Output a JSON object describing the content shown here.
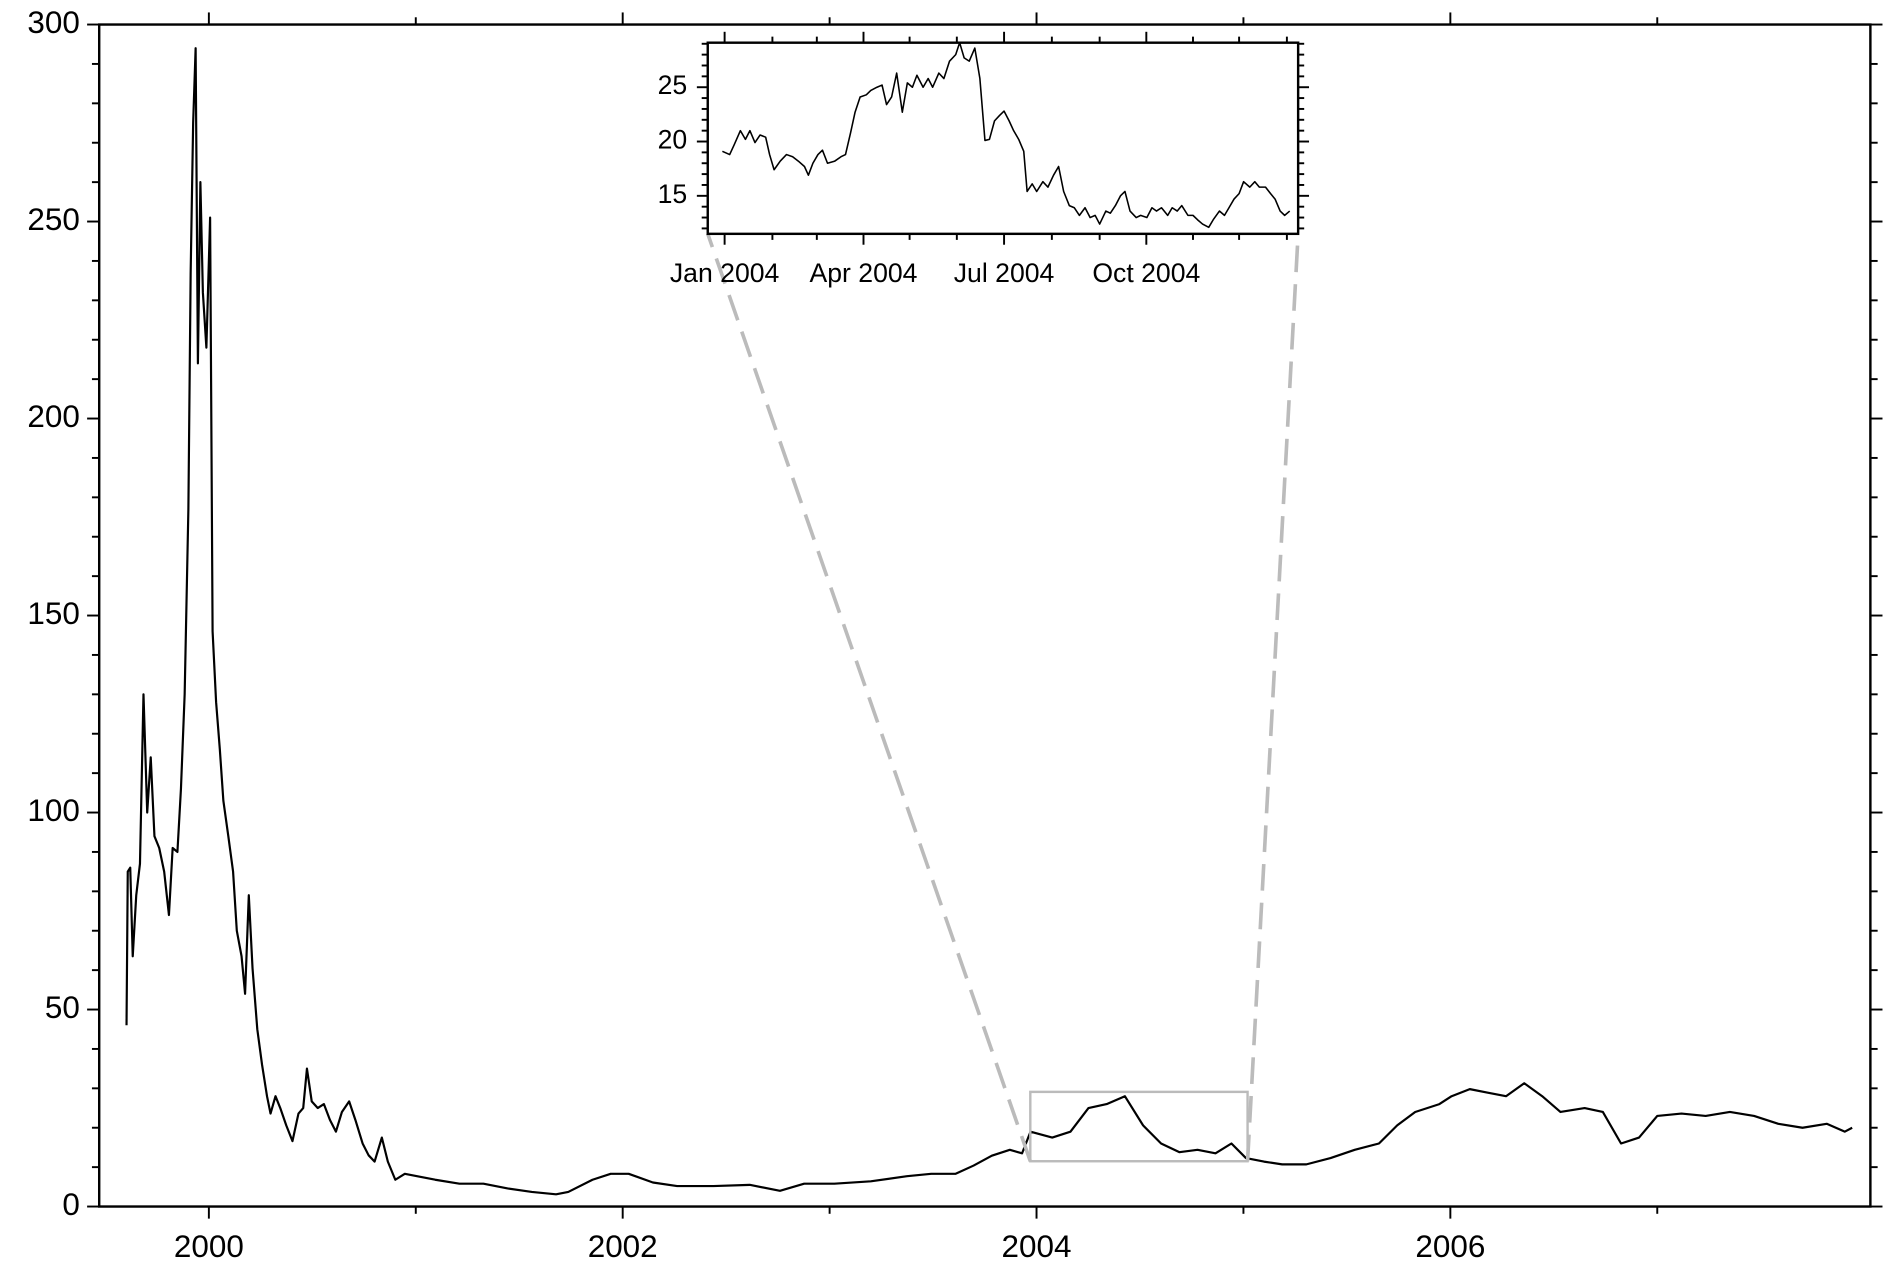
{
  "chart_data": [
    {
      "type": "line",
      "x": [
        1999.602,
        1999.608,
        1999.62,
        1999.632,
        1999.649,
        1999.667,
        1999.684,
        1999.702,
        1999.719,
        1999.737,
        1999.76,
        1999.784,
        1999.807,
        1999.825,
        1999.848,
        1999.865,
        1999.883,
        1999.901,
        1999.912,
        1999.924,
        1999.936,
        1999.947,
        1999.959,
        1999.971,
        1999.988,
        2000.006,
        2000.018,
        2000.035,
        2000.053,
        2000.07,
        2000.094,
        2000.117,
        2000.135,
        2000.158,
        2000.175,
        2000.193,
        2000.211,
        2000.234,
        2000.257,
        2000.281,
        2000.298,
        2000.322,
        2000.345,
        2000.374,
        2000.404,
        2000.433,
        2000.456,
        2000.474,
        2000.497,
        2000.526,
        2000.556,
        2000.585,
        2000.614,
        2000.643,
        2000.678,
        2000.708,
        2000.743,
        2000.772,
        2000.801,
        2000.836,
        2000.865,
        2000.901,
        2000.947,
        2001.006,
        2001.094,
        2001.211,
        2001.327,
        2001.444,
        2001.561,
        2001.678,
        2001.737,
        2001.854,
        2001.942,
        2002.029,
        2002.146,
        2002.263,
        2002.439,
        2002.614,
        2002.76,
        2002.877,
        2003.023,
        2003.199,
        2003.374,
        2003.491,
        2003.608,
        2003.696,
        2003.784,
        2003.871,
        2003.93,
        2003.971,
        2004.076,
        2004.164,
        2004.251,
        2004.339,
        2004.427,
        2004.515,
        2004.602,
        2004.69,
        2004.778,
        2004.865,
        2004.942,
        2005.012,
        2005.099,
        2005.187,
        2005.304,
        2005.421,
        2005.538,
        2005.655,
        2005.743,
        2005.83,
        2005.947,
        2006.006,
        2006.094,
        2006.181,
        2006.269,
        2006.357,
        2006.444,
        2006.532,
        2006.649,
        2006.737,
        2006.825,
        2006.912,
        2007.0,
        2007.117,
        2007.234,
        2007.351,
        2007.468,
        2007.585,
        2007.702,
        2007.819,
        2007.906,
        2007.942
      ],
      "series": [
        {
          "color": "#000000",
          "values": [
            46,
            85,
            86,
            63.5,
            79,
            87,
            130,
            100,
            114,
            94,
            91,
            85,
            74,
            91,
            90,
            106,
            130,
            177,
            237,
            275,
            294,
            214,
            260,
            232,
            218,
            251,
            146,
            128,
            116,
            103,
            94,
            85,
            70,
            63.5,
            54,
            79,
            60.5,
            45,
            36,
            28,
            23.6,
            28,
            25,
            20.6,
            16.6,
            23.6,
            25,
            35,
            26.7,
            25,
            26,
            22,
            19,
            24,
            26.7,
            22,
            16,
            13,
            11.4,
            17.5,
            11.4,
            6.8,
            8.3,
            7.7,
            6.8,
            5.8,
            5.8,
            4.6,
            3.7,
            3.1,
            3.7,
            6.8,
            8.3,
            8.3,
            6.1,
            5.2,
            5.2,
            5.5,
            4,
            5.8,
            5.8,
            6.4,
            7.7,
            8.3,
            8.3,
            10.4,
            12.9,
            14.4,
            13.5,
            19,
            17.5,
            19,
            25,
            26,
            28,
            20.6,
            16,
            13.8,
            14.4,
            13.5,
            16,
            12.3,
            11.4,
            10.7,
            10.7,
            12.3,
            14.4,
            16,
            20.6,
            24,
            26,
            28,
            29.8,
            28.9,
            28,
            31.3,
            28,
            24,
            25,
            24,
            16,
            17.5,
            23,
            23.6,
            23,
            24,
            23,
            21,
            20,
            21,
            19,
            20
          ]
        }
      ],
      "xlim": [
        1999.47,
        2008.03
      ],
      "xticks": [
        2000,
        2002,
        2004,
        2006
      ],
      "xminor": [
        2001,
        2003,
        2005,
        2007
      ],
      "ylim": [
        0,
        300
      ],
      "yticks": [
        0,
        50,
        100,
        150,
        200,
        250,
        300
      ],
      "yminor": [
        10,
        20,
        30,
        40,
        60,
        70,
        80,
        90,
        110,
        120,
        130,
        140,
        160,
        170,
        180,
        190,
        210,
        220,
        230,
        240,
        260,
        270,
        280,
        290
      ]
    },
    {
      "type": "line",
      "x": [
        2003.996,
        2004.009,
        2004.017,
        2004.028,
        2004.037,
        2004.045,
        2004.054,
        2004.063,
        2004.073,
        2004.08,
        2004.088,
        2004.099,
        2004.11,
        2004.121,
        2004.131,
        2004.142,
        2004.149,
        2004.157,
        2004.166,
        2004.174,
        2004.183,
        2004.196,
        2004.207,
        2004.215,
        2004.224,
        2004.232,
        2004.241,
        2004.252,
        2004.26,
        2004.271,
        2004.28,
        2004.288,
        2004.297,
        2004.306,
        2004.316,
        2004.325,
        2004.334,
        2004.342,
        2004.353,
        2004.362,
        2004.37,
        2004.381,
        2004.39,
        2004.4,
        2004.411,
        2004.418,
        2004.426,
        2004.435,
        2004.445,
        2004.454,
        2004.463,
        2004.471,
        2004.48,
        2004.489,
        2004.497,
        2004.506,
        2004.514,
        2004.523,
        2004.532,
        2004.538,
        2004.547,
        2004.555,
        2004.566,
        2004.575,
        2004.585,
        2004.594,
        2004.603,
        2004.613,
        2004.622,
        2004.631,
        2004.641,
        2004.65,
        2004.659,
        2004.667,
        2004.678,
        2004.686,
        2004.695,
        2004.704,
        2004.712,
        2004.721,
        2004.732,
        2004.74,
        2004.751,
        2004.76,
        2004.768,
        2004.777,
        2004.788,
        2004.796,
        2004.805,
        2004.813,
        2004.824,
        2004.833,
        2004.841,
        2004.85,
        2004.861,
        2004.869,
        2004.88,
        2004.889,
        2004.897,
        2004.906,
        2004.915,
        2004.923,
        2004.934,
        2004.943,
        2004.951,
        2004.962,
        2004.971,
        2004.979,
        2004.988,
        2004.996,
        2005.005
      ],
      "series": [
        {
          "color": "#000000",
          "values": [
            19.1,
            18.8,
            19.7,
            21,
            20.2,
            21,
            19.9,
            20.6,
            20.4,
            18.8,
            17.4,
            18.2,
            18.8,
            18.6,
            18.2,
            17.7,
            16.9,
            18,
            18.8,
            19.2,
            18,
            18.2,
            18.6,
            18.8,
            20.8,
            22.7,
            24.1,
            24.3,
            24.7,
            25,
            25.2,
            23.4,
            24.1,
            26.3,
            22.7,
            25.4,
            25,
            26.1,
            25,
            25.8,
            25,
            26.3,
            25.8,
            27.4,
            28,
            29.1,
            27.7,
            27.4,
            28.6,
            25.8,
            20.1,
            20.2,
            21.9,
            22.4,
            22.8,
            21.9,
            21,
            20.2,
            19.1,
            15.4,
            16.1,
            15.4,
            16.3,
            15.8,
            16.9,
            17.7,
            15.4,
            14.1,
            13.9,
            13.2,
            13.9,
            13,
            13.2,
            12.4,
            13.6,
            13.4,
            14.1,
            15,
            15.4,
            13.6,
            13,
            13.2,
            13,
            13.9,
            13.6,
            13.9,
            13.2,
            13.9,
            13.6,
            14.1,
            13.2,
            13.2,
            12.8,
            12.4,
            12.1,
            12.8,
            13.6,
            13.2,
            13.9,
            14.7,
            15.2,
            16.3,
            15.8,
            16.3,
            15.8,
            15.8,
            15.2,
            14.7,
            13.6,
            13.2,
            13.6
          ]
        }
      ],
      "xlim": [
        2003.97,
        2005.02
      ],
      "xticks": [
        {
          "value": 2004.0,
          "label": "Jan 2004"
        },
        {
          "value": 2004.247,
          "label": "Apr 2004"
        },
        {
          "value": 2004.497,
          "label": "Jul 2004"
        },
        {
          "value": 2004.75,
          "label": "Oct 2004"
        }
      ],
      "xminor": [
        2004.085,
        2004.164,
        2004.329,
        2004.413,
        2004.582,
        2004.667,
        2004.833,
        2004.915,
        2005.0
      ],
      "ylim": [
        11.5,
        29.1
      ],
      "yticks": [
        15,
        20,
        25
      ],
      "yminor": [
        12,
        13,
        14,
        16,
        17,
        18,
        19,
        21,
        22,
        23,
        24,
        26,
        27,
        28,
        29
      ]
    }
  ]
}
